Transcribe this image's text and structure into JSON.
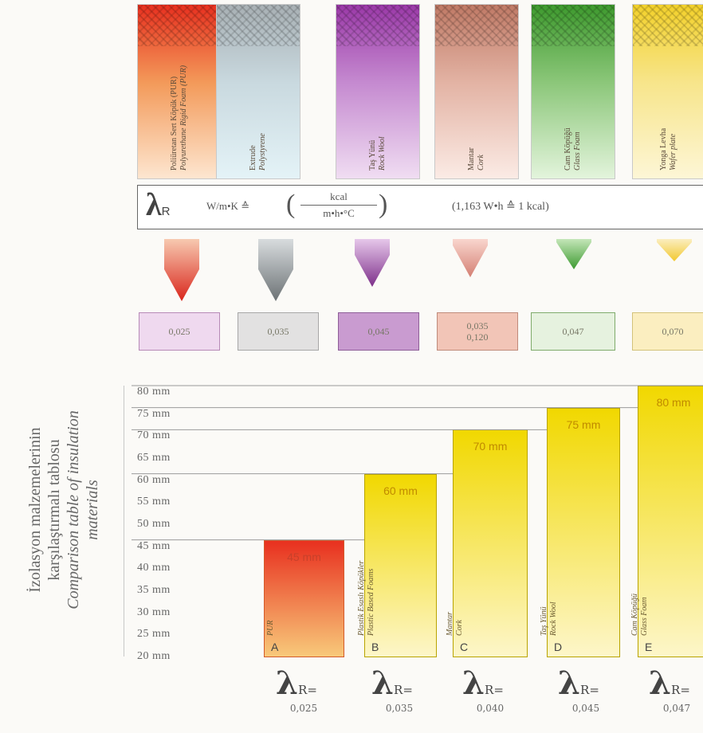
{
  "materials": [
    {
      "tr": "Poliüretan Sert Köpük (PUR)",
      "en": "Polyurethane Rigid Foam (PUR)",
      "value": "0,025",
      "value2": "",
      "box_bg": "#efd9ef",
      "box_border": "#b78ab7",
      "grad": [
        "#e8301f",
        "#f39a5a",
        "#fde6d0"
      ],
      "funnel": [
        "#d9261c",
        "#f7c9b0"
      ]
    },
    {
      "tr": "Extrude",
      "en": "Polystyrene",
      "value": "0,035",
      "value2": "",
      "box_bg": "#e2e1e1",
      "box_border": "#a7a7a7",
      "grad": [
        "#a8b0b4",
        "#c9d9df",
        "#e4f3f7"
      ],
      "funnel": [
        "#6c7275",
        "#d8dcde"
      ]
    },
    {
      "tr": "Taş Yünü",
      "en": "Rock Wool",
      "value": "0,045",
      "value2": "",
      "box_bg": "#c99bd0",
      "box_border": "#8e5e98",
      "grad": [
        "#9b39a8",
        "#c58ad0",
        "#f0ddf2"
      ],
      "funnel": [
        "#7d2f8a",
        "#e6c7ea"
      ]
    },
    {
      "tr": "Mantar",
      "en": "Cork",
      "value": "0,035",
      "value2": "0,120",
      "box_bg": "#f2c5b7",
      "box_border": "#c08b7b",
      "grad": [
        "#c07a66",
        "#e3b3a4",
        "#fbebe5"
      ],
      "funnel": [
        "#d47f73",
        "#f9d6ce"
      ]
    },
    {
      "tr": "Cam Köpüğü",
      "en": "Glass Foam",
      "value": "0,047",
      "value2": "",
      "box_bg": "#e6f2df",
      "box_border": "#7fab6b",
      "grad": [
        "#3e9a2e",
        "#8cc77a",
        "#e3f4dc"
      ],
      "funnel": [
        "#3d9a31",
        "#c4e6b8"
      ]
    },
    {
      "tr": "Yonga Levha",
      "en": "Wafer plate",
      "value": "0,070",
      "value2": "",
      "box_bg": "#fbeec0",
      "box_border": "#d3c27a",
      "grad": [
        "#f3d12b",
        "#f7e58b",
        "#fdf6d6"
      ],
      "funnel": [
        "#f2c82f",
        "#fbeec0"
      ]
    }
  ],
  "unit_bar": {
    "lambda": "λ",
    "sub": "R",
    "unit": "W/m•K",
    "equiv": "≙",
    "num": "kcal",
    "den": "m•h•°C",
    "note": "(1,163 W•h  ≙ 1 kcal)"
  },
  "side_title": {
    "tr1": "İzolasyon malzemelerinin",
    "tr2": "karşılaştırmalı tablosu",
    "en1": "Comparison table of insulation",
    "en2": "materials"
  },
  "colors": {
    "bar_top": "#f1d800",
    "bar_bottom": "#fdf6c9",
    "bar_a_top": "#e8301f",
    "bar_a_bottom": "#f8c97a"
  },
  "chart_data": {
    "type": "bar",
    "ylim": [
      20,
      80
    ],
    "yticks": [
      "80 mm",
      "75 mm",
      "70 mm",
      "65 mm",
      "60 mm",
      "55 mm",
      "50 mm",
      "45 mm",
      "40 mm",
      "35 mm",
      "30 mm",
      "25 mm",
      "20 mm"
    ],
    "categories": [
      "A",
      "B",
      "C",
      "D",
      "E"
    ],
    "values": [
      45,
      60,
      70,
      75,
      80
    ],
    "value_labels": [
      "45 mm",
      "60 mm",
      "70 mm",
      "75 mm",
      "80 mm"
    ],
    "bar_names_tr": [
      "",
      "Plastik Esaslı Köpükler",
      "Mantar",
      "Taş Yünü",
      "Cam Köpüğü"
    ],
    "bar_names_en": [
      "PUR",
      "Plastic Based Foams",
      "Cork",
      "Rock Wool",
      "Glass Foam"
    ],
    "lambda_values": [
      "0,025",
      "0,035",
      "0,040",
      "0,045",
      "0,047"
    ],
    "lambda_label": "λ",
    "lambda_sub": "R",
    "lambda_eq": "="
  }
}
